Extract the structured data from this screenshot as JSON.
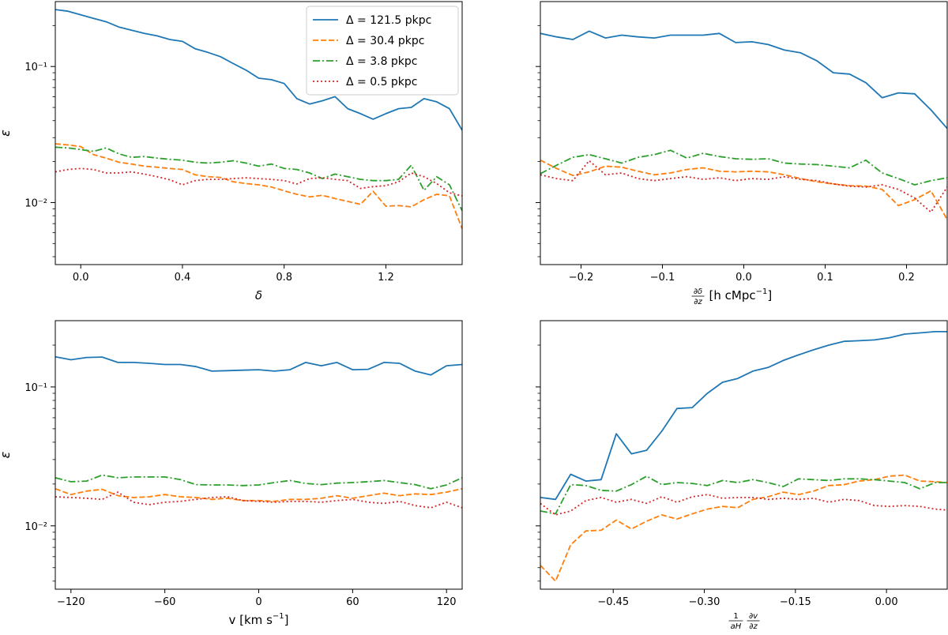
{
  "chart_data": [
    {
      "type": "line",
      "panel": "top-left",
      "xlabel": "δ",
      "ylabel": "ε",
      "xlim": [
        -0.1,
        1.5
      ],
      "ylim": [
        0.0035,
        0.3
      ],
      "yscale": "log",
      "xticks": [
        0.0,
        0.4,
        0.8,
        1.2
      ],
      "xtick_labels": [
        "0.0",
        "0.4",
        "0.8",
        "1.2"
      ],
      "yticks": [
        0.1,
        0.01
      ],
      "ytick_labels": [
        "10⁻¹",
        "10⁻²"
      ],
      "grid": false,
      "x": [
        -0.1,
        -0.05,
        0.0,
        0.05,
        0.1,
        0.15,
        0.2,
        0.25,
        0.3,
        0.35,
        0.4,
        0.45,
        0.5,
        0.55,
        0.6,
        0.65,
        0.7,
        0.75,
        0.8,
        0.85,
        0.9,
        0.95,
        1.0,
        1.05,
        1.1,
        1.15,
        1.2,
        1.25,
        1.3,
        1.35,
        1.4,
        1.45,
        1.5
      ],
      "series": [
        {
          "name": "Δ = 121.5 pkpc",
          "color": "#1f77b4",
          "dash": "solid",
          "values": [
            0.262,
            0.255,
            0.24,
            0.226,
            0.213,
            0.195,
            0.185,
            0.175,
            0.168,
            0.158,
            0.153,
            0.135,
            0.127,
            0.118,
            0.105,
            0.094,
            0.082,
            0.08,
            0.075,
            0.058,
            0.053,
            0.056,
            0.06,
            0.049,
            0.045,
            0.041,
            0.045,
            0.049,
            0.05,
            0.058,
            0.055,
            0.049,
            0.034
          ]
        },
        {
          "name": "Δ = 30.4 pkpc",
          "color": "#ff7f0e",
          "dash": "dashed",
          "values": [
            0.027,
            0.0265,
            0.0258,
            0.0225,
            0.0212,
            0.0198,
            0.0192,
            0.0185,
            0.0182,
            0.0178,
            0.0175,
            0.016,
            0.0155,
            0.0153,
            0.0142,
            0.0138,
            0.0135,
            0.013,
            0.0122,
            0.0115,
            0.011,
            0.0113,
            0.0107,
            0.0102,
            0.0097,
            0.0121,
            0.0094,
            0.0095,
            0.0093,
            0.0105,
            0.0115,
            0.0112,
            0.0064
          ]
        },
        {
          "name": "Δ = 3.8 pkpc",
          "color": "#2ca02c",
          "dash": "dashdot",
          "values": [
            0.0255,
            0.0252,
            0.0245,
            0.0238,
            0.0252,
            0.0228,
            0.0215,
            0.0218,
            0.0212,
            0.0208,
            0.0205,
            0.0198,
            0.0195,
            0.0198,
            0.0203,
            0.0195,
            0.0185,
            0.0192,
            0.0178,
            0.0175,
            0.0165,
            0.015,
            0.0162,
            0.0155,
            0.0148,
            0.0145,
            0.0145,
            0.0148,
            0.0188,
            0.0123,
            0.0155,
            0.0135,
            0.0087
          ]
        },
        {
          "name": "Δ = 0.5 pkpc",
          "color": "#d62728",
          "dash": "dotted",
          "values": [
            0.0168,
            0.0175,
            0.0178,
            0.0175,
            0.0165,
            0.0165,
            0.0168,
            0.0162,
            0.0155,
            0.0147,
            0.0135,
            0.0145,
            0.0148,
            0.0148,
            0.015,
            0.0152,
            0.015,
            0.0148,
            0.0145,
            0.0137,
            0.015,
            0.0152,
            0.0148,
            0.0145,
            0.0127,
            0.0131,
            0.0133,
            0.0142,
            0.0165,
            0.0155,
            0.0138,
            0.0118,
            0.0112
          ]
        }
      ],
      "legend_position": "top-right"
    },
    {
      "type": "line",
      "panel": "top-right",
      "xlabel": "∂δ/∂z [h cMpc⁻¹]",
      "xlabel_parts": {
        "frac_top": "∂δ",
        "frac_bottom": "∂z",
        "rest": "[h cMpc",
        "sup": "−1",
        "close": "]"
      },
      "ylabel": "",
      "xlim": [
        -0.25,
        0.25
      ],
      "ylim": [
        0.0035,
        0.3
      ],
      "yscale": "log",
      "xticks": [
        -0.2,
        -0.1,
        0.0,
        0.1,
        0.2
      ],
      "xtick_labels": [
        "−0.2",
        "−0.1",
        "0.0",
        "0.1",
        "0.2"
      ],
      "yticks": [
        0.1,
        0.01
      ],
      "ytick_labels": [
        "",
        ""
      ],
      "grid": false,
      "x": [
        -0.25,
        -0.23,
        -0.21,
        -0.19,
        -0.17,
        -0.15,
        -0.13,
        -0.11,
        -0.09,
        -0.07,
        -0.05,
        -0.03,
        -0.01,
        0.01,
        0.03,
        0.05,
        0.07,
        0.09,
        0.11,
        0.13,
        0.15,
        0.17,
        0.19,
        0.21,
        0.23,
        0.25
      ],
      "series": [
        {
          "name": "Δ = 121.5 pkpc",
          "color": "#1f77b4",
          "dash": "solid",
          "values": [
            0.175,
            0.165,
            0.158,
            0.182,
            0.162,
            0.17,
            0.165,
            0.162,
            0.17,
            0.17,
            0.17,
            0.175,
            0.15,
            0.152,
            0.145,
            0.132,
            0.126,
            0.11,
            0.09,
            0.088,
            0.076,
            0.059,
            0.064,
            0.063,
            0.048,
            0.035
          ]
        },
        {
          "name": "Δ = 30.4 pkpc",
          "color": "#ff7f0e",
          "dash": "dashed",
          "values": [
            0.0205,
            0.0178,
            0.0158,
            0.0168,
            0.0185,
            0.0182,
            0.017,
            0.016,
            0.0165,
            0.0175,
            0.018,
            0.017,
            0.0168,
            0.017,
            0.0168,
            0.016,
            0.015,
            0.0142,
            0.0137,
            0.0133,
            0.0132,
            0.0125,
            0.0095,
            0.0105,
            0.0122,
            0.0075
          ]
        },
        {
          "name": "Δ = 3.8 pkpc",
          "color": "#2ca02c",
          "dash": "dashdot",
          "values": [
            0.0163,
            0.0188,
            0.0215,
            0.0225,
            0.021,
            0.0195,
            0.0215,
            0.0225,
            0.0242,
            0.0212,
            0.023,
            0.0218,
            0.021,
            0.0208,
            0.021,
            0.0195,
            0.0192,
            0.019,
            0.0185,
            0.018,
            0.0205,
            0.0165,
            0.015,
            0.0135,
            0.0145,
            0.0152
          ]
        },
        {
          "name": "Δ = 0.5 pkpc",
          "color": "#d62728",
          "dash": "dotted",
          "values": [
            0.016,
            0.015,
            0.0145,
            0.0203,
            0.016,
            0.0165,
            0.015,
            0.0145,
            0.015,
            0.0155,
            0.0148,
            0.0152,
            0.0145,
            0.015,
            0.0148,
            0.0155,
            0.0148,
            0.0145,
            0.0137,
            0.0132,
            0.013,
            0.0135,
            0.0125,
            0.0108,
            0.0085,
            0.013
          ]
        }
      ]
    },
    {
      "type": "line",
      "panel": "bottom-left",
      "xlabel": "v [km s⁻¹]",
      "xlabel_parts": {
        "main": "v [km s",
        "sup": "−1",
        "close": "]"
      },
      "ylabel": "ε",
      "xlim": [
        -130,
        130
      ],
      "ylim": [
        0.0035,
        0.3
      ],
      "yscale": "log",
      "xticks": [
        -120,
        -60,
        0,
        60,
        120
      ],
      "xtick_labels": [
        "−120",
        "−60",
        "0",
        "60",
        "120"
      ],
      "yticks": [
        0.1,
        0.01
      ],
      "ytick_labels": [
        "10⁻¹",
        "10⁻²"
      ],
      "grid": false,
      "x": [
        -130,
        -120,
        -110,
        -100,
        -90,
        -80,
        -70,
        -60,
        -50,
        -40,
        -30,
        -20,
        -10,
        0,
        10,
        20,
        30,
        40,
        50,
        60,
        70,
        80,
        90,
        100,
        110,
        120,
        130
      ],
      "series": [
        {
          "name": "Δ = 121.5 pkpc",
          "color": "#1f77b4",
          "dash": "solid",
          "values": [
            0.165,
            0.157,
            0.163,
            0.164,
            0.15,
            0.15,
            0.148,
            0.145,
            0.145,
            0.14,
            0.13,
            0.131,
            0.132,
            0.133,
            0.13,
            0.133,
            0.15,
            0.142,
            0.15,
            0.133,
            0.134,
            0.15,
            0.148,
            0.13,
            0.122,
            0.142,
            0.145
          ]
        },
        {
          "name": "Δ = 30.4 pkpc",
          "color": "#ff7f0e",
          "dash": "dashed",
          "values": [
            0.0185,
            0.0168,
            0.0178,
            0.0183,
            0.0165,
            0.016,
            0.0162,
            0.0168,
            0.0162,
            0.016,
            0.0155,
            0.0158,
            0.0152,
            0.0152,
            0.015,
            0.0155,
            0.0155,
            0.0158,
            0.0165,
            0.0158,
            0.0165,
            0.0172,
            0.0165,
            0.017,
            0.0168,
            0.0175,
            0.0185
          ]
        },
        {
          "name": "Δ = 3.8 pkpc",
          "color": "#2ca02c",
          "dash": "dashdot",
          "values": [
            0.0222,
            0.0208,
            0.021,
            0.0232,
            0.0222,
            0.0225,
            0.0225,
            0.0225,
            0.0215,
            0.0198,
            0.0197,
            0.0197,
            0.0195,
            0.0197,
            0.0205,
            0.0212,
            0.0202,
            0.0198,
            0.0203,
            0.0205,
            0.0208,
            0.0212,
            0.0205,
            0.0198,
            0.0185,
            0.0197,
            0.0222
          ]
        },
        {
          "name": "Δ = 0.5 pkpc",
          "color": "#d62728",
          "dash": "dotted",
          "values": [
            0.0162,
            0.016,
            0.0158,
            0.0155,
            0.0175,
            0.0148,
            0.0142,
            0.0148,
            0.015,
            0.0155,
            0.016,
            0.0162,
            0.0152,
            0.015,
            0.0148,
            0.015,
            0.015,
            0.0148,
            0.0152,
            0.0155,
            0.0148,
            0.0145,
            0.015,
            0.014,
            0.0135,
            0.0148,
            0.0135
          ]
        }
      ]
    },
    {
      "type": "line",
      "panel": "bottom-right",
      "xlabel": "(1/aH) ∂v/∂z",
      "xlabel_parts": {
        "f1_top": "1",
        "f1_bottom": "aH",
        "f2_top": "∂v",
        "f2_bottom": "∂z"
      },
      "ylabel": "",
      "xlim": [
        -0.57,
        0.1
      ],
      "ylim": [
        0.0035,
        0.3
      ],
      "yscale": "log",
      "xticks": [
        -0.45,
        -0.3,
        -0.15,
        0.0
      ],
      "xtick_labels": [
        "−0.45",
        "−0.30",
        "−0.15",
        "0.00"
      ],
      "yticks": [
        0.1,
        0.01
      ],
      "ytick_labels": [
        "",
        ""
      ],
      "grid": false,
      "x": [
        -0.57,
        -0.545,
        -0.52,
        -0.495,
        -0.47,
        -0.445,
        -0.42,
        -0.395,
        -0.37,
        -0.345,
        -0.32,
        -0.295,
        -0.27,
        -0.245,
        -0.22,
        -0.195,
        -0.17,
        -0.145,
        -0.12,
        -0.095,
        -0.07,
        -0.045,
        -0.02,
        0.005,
        0.03,
        0.055,
        0.08,
        0.1
      ],
      "series": [
        {
          "name": "Δ = 121.5 pkpc",
          "color": "#1f77b4",
          "dash": "solid",
          "values": [
            0.016,
            0.0155,
            0.0235,
            0.021,
            0.0215,
            0.046,
            0.033,
            0.035,
            0.048,
            0.07,
            0.071,
            0.09,
            0.108,
            0.115,
            0.13,
            0.138,
            0.155,
            0.17,
            0.185,
            0.2,
            0.213,
            0.215,
            0.218,
            0.226,
            0.24,
            0.245,
            0.25,
            0.25
          ]
        },
        {
          "name": "Δ = 30.4 pkpc",
          "color": "#ff7f0e",
          "dash": "dashed",
          "values": [
            0.0052,
            0.004,
            0.0073,
            0.0092,
            0.0093,
            0.011,
            0.0095,
            0.0108,
            0.012,
            0.0112,
            0.0122,
            0.0132,
            0.0138,
            0.0135,
            0.0155,
            0.0162,
            0.0175,
            0.0168,
            0.0178,
            0.0195,
            0.0198,
            0.021,
            0.0215,
            0.0228,
            0.0232,
            0.021,
            0.0208,
            0.0205
          ]
        },
        {
          "name": "Δ = 3.8 pkpc",
          "color": "#2ca02c",
          "dash": "dashdot",
          "values": [
            0.0128,
            0.0122,
            0.0198,
            0.0195,
            0.018,
            0.0178,
            0.0198,
            0.0228,
            0.0198,
            0.0205,
            0.0202,
            0.0195,
            0.0212,
            0.0205,
            0.0215,
            0.0205,
            0.0192,
            0.0218,
            0.0215,
            0.0212,
            0.0218,
            0.0218,
            0.0215,
            0.021,
            0.0205,
            0.0185,
            0.0205,
            0.0205
          ]
        },
        {
          "name": "Δ = 0.5 pkpc",
          "color": "#d62728",
          "dash": "dotted",
          "values": [
            0.0145,
            0.012,
            0.0128,
            0.0152,
            0.016,
            0.0148,
            0.0155,
            0.0145,
            0.0162,
            0.0148,
            0.0162,
            0.0168,
            0.0158,
            0.016,
            0.016,
            0.0155,
            0.0158,
            0.0155,
            0.0158,
            0.0148,
            0.0155,
            0.0152,
            0.014,
            0.0138,
            0.014,
            0.0138,
            0.0132,
            0.013
          ]
        }
      ]
    }
  ],
  "legend": {
    "entries": [
      "Δ = 121.5 pkpc",
      "Δ = 30.4 pkpc",
      "Δ = 3.8 pkpc",
      "Δ = 0.5 pkpc"
    ]
  }
}
